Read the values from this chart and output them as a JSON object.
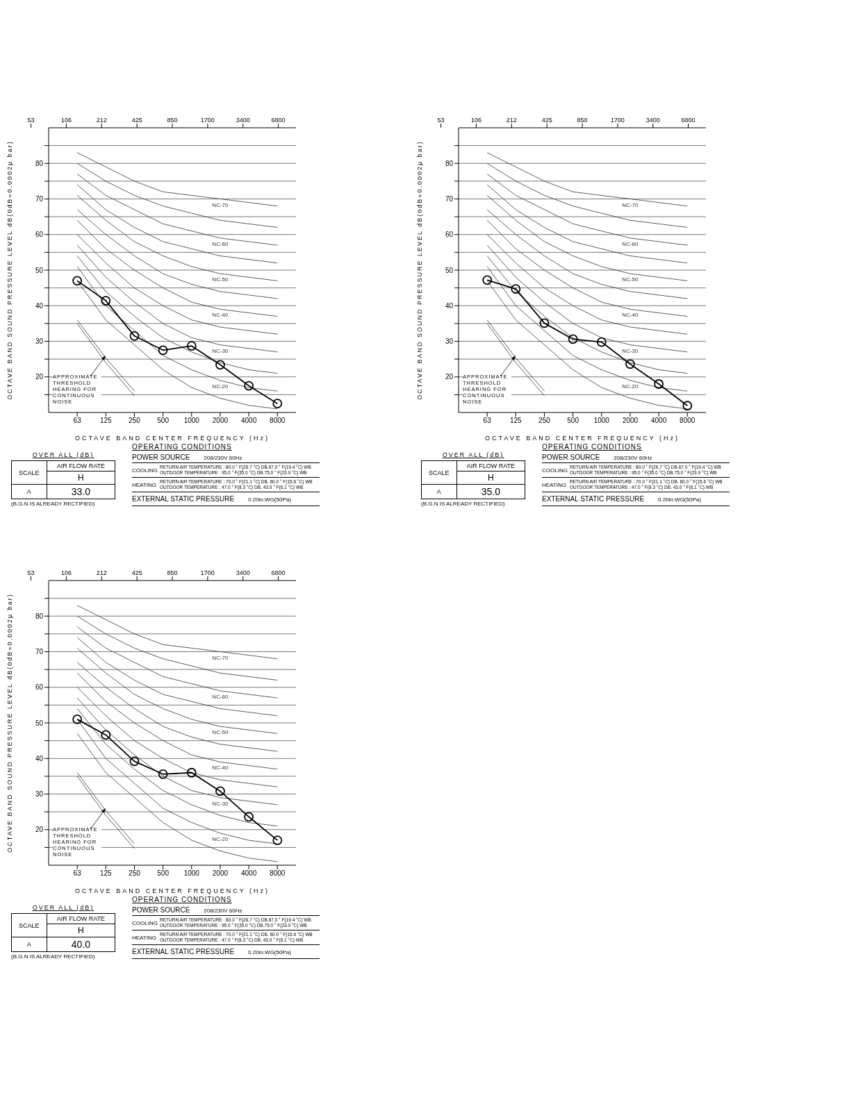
{
  "chart_data": [
    {
      "type": "line",
      "ylabel": "OCTAVE BAND SOUND PRESSURE LEVEL    dB(0dB=0.0002μ bar)",
      "xlabel": "OCTAVE BAND CENTER FREQUENCY (Hz)",
      "categories": [
        "63",
        "125",
        "250",
        "500",
        "1000",
        "2000",
        "4000",
        "8000"
      ],
      "ylim": [
        10,
        90
      ],
      "yticks": [
        {
          "value": 15,
          "label": null
        },
        20,
        {
          "value": 25,
          "label": null
        },
        30,
        {
          "value": 35,
          "label": null
        },
        40,
        {
          "value": 45,
          "label": null
        },
        50,
        {
          "value": 55,
          "label": null
        },
        60,
        {
          "value": 65,
          "label": null
        },
        70,
        {
          "value": 75,
          "label": null
        },
        80,
        {
          "value": 85,
          "label": null
        }
      ],
      "grid": "y",
      "series": [
        {
          "color": "#333333",
          "values": [
            47,
            36,
            29,
            22,
            17,
            14,
            12,
            11
          ]
        },
        {
          "name": "NC-20",
          "color": "#333333",
          "values": [
            51,
            40,
            33,
            26,
            22,
            19,
            17,
            16
          ]
        },
        {
          "color": "#333333",
          "values": [
            54,
            44,
            37,
            31,
            27,
            24,
            22,
            21
          ]
        },
        {
          "name": "NC-30",
          "color": "#333333",
          "values": [
            57,
            48,
            41,
            35,
            31,
            29,
            28,
            27
          ]
        },
        {
          "color": "#333333",
          "values": [
            60,
            52,
            45,
            40,
            36,
            34,
            33,
            32
          ]
        },
        {
          "name": "NC-40",
          "color": "#333333",
          "values": [
            64,
            56,
            50,
            45,
            41,
            39,
            38,
            37
          ]
        },
        {
          "color": "#333333",
          "values": [
            67,
            60,
            54,
            49,
            46,
            44,
            43,
            42
          ]
        },
        {
          "name": "NC-50",
          "color": "#333333",
          "values": [
            71,
            64,
            58,
            54,
            51,
            49,
            48,
            47
          ]
        },
        {
          "color": "#333333",
          "values": [
            74,
            67,
            62,
            58,
            56,
            54,
            53,
            52
          ]
        },
        {
          "name": "NC-60",
          "color": "#333333",
          "values": [
            77,
            71,
            67,
            63,
            61,
            59,
            58,
            57
          ]
        },
        {
          "color": "#333333",
          "values": [
            80,
            75,
            71,
            68,
            66,
            64,
            63,
            62
          ]
        },
        {
          "name": "NC-70",
          "color": "#333333",
          "values": [
            83,
            79,
            75,
            72,
            71,
            70,
            69,
            68
          ]
        },
        {
          "color": "#333333",
          "values": [
            36,
            25.3,
            16,
            null,
            null,
            null,
            null,
            null
          ]
        },
        {
          "color": "#333333",
          "values": [
            35,
            24,
            14.7,
            null,
            null,
            null,
            null,
            null
          ]
        },
        {
          "color": "#000000",
          "marker": "circle",
          "values": [
            47.0,
            41.4,
            31.5,
            27.5,
            28.7,
            23.4,
            17.5,
            12.5
          ]
        }
      ],
      "annotations": [
        "53",
        "106",
        "212",
        "425",
        "850",
        "1700",
        "3400",
        "6800",
        "APPROXIMATE THRESHOLD HEARING FOR CONTINUOUS NOISE",
        "OVER ALL (dB)",
        "SCALE",
        "AIR FLOW RATE",
        "H",
        "A",
        "33.0",
        "(B.G.N IS ALREADY RECTIFIED)",
        "OPERATING CONDITIONS",
        "POWER SOURCE",
        "208/230V 60Hz",
        "COOLING",
        "RETURN AIR TEMPERATURE : 80.0 ° F(26.7 °C) DB.67.0 ° F(19.4 °C) WB",
        "OUTDOOR TEMPERATURE : 95.0 ° F(35.0 °C) DB.75.0 ° F(23.9 °C) WB",
        "HEATING",
        "RETURN AIR TEMPERATURE : 70.0 ° F(21.1 °C) DB. 60.0 ° F(15.6 °C) WB",
        "OUTDOOR TEMPERATURE : 47.0 ° F(8.3 °C) DB. 43.0 ° F(6.1 °C) WB",
        "EXTERNAL STATIC PRESSURE",
        "0.20in.WG(50Pa)"
      ]
    },
    {
      "type": "line",
      "ylabel": "OCTAVE BAND SOUND PRESSURE LEVEL    dB(0dB=0.0002μ bar)",
      "xlabel": "OCTAVE BAND CENTER FREQUENCY (Hz)",
      "categories": [
        "63",
        "125",
        "250",
        "500",
        "1000",
        "2000",
        "4000",
        "8000"
      ],
      "ylim": [
        10,
        90
      ],
      "yticks": [
        {
          "value": 15,
          "label": null
        },
        20,
        {
          "value": 25,
          "label": null
        },
        30,
        {
          "value": 35,
          "label": null
        },
        40,
        {
          "value": 45,
          "label": null
        },
        50,
        {
          "value": 55,
          "label": null
        },
        60,
        {
          "value": 65,
          "label": null
        },
        70,
        {
          "value": 75,
          "label": null
        },
        80,
        {
          "value": 85,
          "label": null
        }
      ],
      "grid": "y",
      "series": [
        {
          "color": "#333333",
          "values": [
            47,
            36,
            29,
            22,
            17,
            14,
            12,
            11
          ]
        },
        {
          "name": "NC-20",
          "color": "#333333",
          "values": [
            51,
            40,
            33,
            26,
            22,
            19,
            17,
            16
          ]
        },
        {
          "color": "#333333",
          "values": [
            54,
            44,
            37,
            31,
            27,
            24,
            22,
            21
          ]
        },
        {
          "name": "NC-30",
          "color": "#333333",
          "values": [
            57,
            48,
            41,
            35,
            31,
            29,
            28,
            27
          ]
        },
        {
          "color": "#333333",
          "values": [
            60,
            52,
            45,
            40,
            36,
            34,
            33,
            32
          ]
        },
        {
          "name": "NC-40",
          "color": "#333333",
          "values": [
            64,
            56,
            50,
            45,
            41,
            39,
            38,
            37
          ]
        },
        {
          "color": "#333333",
          "values": [
            67,
            60,
            54,
            49,
            46,
            44,
            43,
            42
          ]
        },
        {
          "name": "NC-50",
          "color": "#333333",
          "values": [
            71,
            64,
            58,
            54,
            51,
            49,
            48,
            47
          ]
        },
        {
          "color": "#333333",
          "values": [
            74,
            67,
            62,
            58,
            56,
            54,
            53,
            52
          ]
        },
        {
          "name": "NC-60",
          "color": "#333333",
          "values": [
            77,
            71,
            67,
            63,
            61,
            59,
            58,
            57
          ]
        },
        {
          "color": "#333333",
          "values": [
            80,
            75,
            71,
            68,
            66,
            64,
            63,
            62
          ]
        },
        {
          "name": "NC-70",
          "color": "#333333",
          "values": [
            83,
            79,
            75,
            72,
            71,
            70,
            69,
            68
          ]
        },
        {
          "color": "#333333",
          "values": [
            36,
            25.3,
            16,
            null,
            null,
            null,
            null,
            null
          ]
        },
        {
          "color": "#333333",
          "values": [
            35,
            24,
            14.7,
            null,
            null,
            null,
            null,
            null
          ]
        },
        {
          "color": "#000000",
          "marker": "circle",
          "values": [
            47.2,
            44.7,
            35.1,
            30.6,
            29.8,
            23.6,
            18.0,
            11.9
          ]
        }
      ],
      "annotations": [
        "53",
        "106",
        "212",
        "425",
        "850",
        "1700",
        "3400",
        "6800",
        "APPROXIMATE THRESHOLD HEARING FOR CONTINUOUS NOISE",
        "OVER ALL (dB)",
        "SCALE",
        "AIR FLOW RATE",
        "H",
        "A",
        "35.0",
        "(B.G.N IS ALREADY RECTIFIED)",
        "OPERATING CONDITIONS",
        "POWER SOURCE",
        "208/230V 60Hz",
        "COOLING",
        "RETURN AIR TEMPERATURE : 80.0 ° F(26.7 °C) DB.67.0 ° F(19.4 °C) WB",
        "OUTDOOR TEMPERATURE : 95.0 ° F(35.0 °C) DB.75.0 ° F(23.9 °C) WB",
        "HEATING",
        "RETURN AIR TEMPERATURE : 70.0 ° F(21.1 °C) DB. 60.0 ° F(15.6 °C) WB",
        "OUTDOOR TEMPERATURE : 47.0 ° F(8.3 °C) DB. 43.0 ° F(6.1 °C) WB",
        "EXTERNAL STATIC PRESSURE",
        "0.20in.WG(50Pa)"
      ]
    },
    {
      "type": "line",
      "ylabel": "OCTAVE BAND SOUND PRESSURE LEVEL    dB(0dB=0.0002μ bar)",
      "xlabel": "OCTAVE BAND CENTER FREQUENCY (Hz)",
      "categories": [
        "63",
        "125",
        "250",
        "500",
        "1000",
        "2000",
        "4000",
        "8000"
      ],
      "ylim": [
        10,
        90
      ],
      "yticks": [
        {
          "value": 15,
          "label": null
        },
        20,
        {
          "value": 25,
          "label": null
        },
        30,
        {
          "value": 35,
          "label": null
        },
        40,
        {
          "value": 45,
          "label": null
        },
        50,
        {
          "value": 55,
          "label": null
        },
        60,
        {
          "value": 65,
          "label": null
        },
        70,
        {
          "value": 75,
          "label": null
        },
        80,
        {
          "value": 85,
          "label": null
        }
      ],
      "grid": "y",
      "series": [
        {
          "color": "#333333",
          "values": [
            47,
            36,
            29,
            22,
            17,
            14,
            12,
            11
          ]
        },
        {
          "name": "NC-20",
          "color": "#333333",
          "values": [
            51,
            40,
            33,
            26,
            22,
            19,
            17,
            16
          ]
        },
        {
          "color": "#333333",
          "values": [
            54,
            44,
            37,
            31,
            27,
            24,
            22,
            21
          ]
        },
        {
          "name": "NC-30",
          "color": "#333333",
          "values": [
            57,
            48,
            41,
            35,
            31,
            29,
            28,
            27
          ]
        },
        {
          "color": "#333333",
          "values": [
            60,
            52,
            45,
            40,
            36,
            34,
            33,
            32
          ]
        },
        {
          "name": "NC-40",
          "color": "#333333",
          "values": [
            64,
            56,
            50,
            45,
            41,
            39,
            38,
            37
          ]
        },
        {
          "color": "#333333",
          "values": [
            67,
            60,
            54,
            49,
            46,
            44,
            43,
            42
          ]
        },
        {
          "name": "NC-50",
          "color": "#333333",
          "values": [
            71,
            64,
            58,
            54,
            51,
            49,
            48,
            47
          ]
        },
        {
          "color": "#333333",
          "values": [
            74,
            67,
            62,
            58,
            56,
            54,
            53,
            52
          ]
        },
        {
          "name": "NC-60",
          "color": "#333333",
          "values": [
            77,
            71,
            67,
            63,
            61,
            59,
            58,
            57
          ]
        },
        {
          "color": "#333333",
          "values": [
            80,
            75,
            71,
            68,
            66,
            64,
            63,
            62
          ]
        },
        {
          "name": "NC-70",
          "color": "#333333",
          "values": [
            83,
            79,
            75,
            72,
            71,
            70,
            69,
            68
          ]
        },
        {
          "color": "#333333",
          "values": [
            36,
            25.3,
            16,
            null,
            null,
            null,
            null,
            null
          ]
        },
        {
          "color": "#333333",
          "values": [
            35,
            24,
            14.7,
            null,
            null,
            null,
            null,
            null
          ]
        },
        {
          "color": "#000000",
          "marker": "circle",
          "values": [
            51.0,
            46.6,
            39.2,
            35.6,
            36.0,
            30.8,
            23.6,
            17.0
          ]
        }
      ],
      "annotations": [
        "53",
        "106",
        "212",
        "425",
        "850",
        "1700",
        "3400",
        "6800",
        "APPROXIMATE THRESHOLD HEARING FOR CONTINUOUS NOISE",
        "OVER ALL (dB)",
        "SCALE",
        "AIR FLOW RATE",
        "H",
        "A",
        "40.0",
        "(B.G.N IS ALREADY RECTIFIED)",
        "OPERATING CONDITIONS",
        "POWER SOURCE",
        "208/230V 60Hz",
        "COOLING",
        "RETURN AIR TEMPERATURE : 80.0 ° F(26.7 °C) DB.67.0 ° F(19.4 °C) WB",
        "OUTDOOR TEMPERATURE : 95.0 ° F(35.0 °C) DB.75.0 ° F(23.9 °C) WB",
        "HEATING",
        "RETURN AIR TEMPERATURE : 70.0 ° F(21.1 °C) DB. 60.0 ° F(15.6 °C) WB",
        "OUTDOOR TEMPERATURE : 47.0 ° F(8.3 °C) DB. 43.0 ° F(6.1 °C) WB",
        "EXTERNAL STATIC PRESSURE",
        "0.20in.WG(50Pa)"
      ]
    }
  ]
}
